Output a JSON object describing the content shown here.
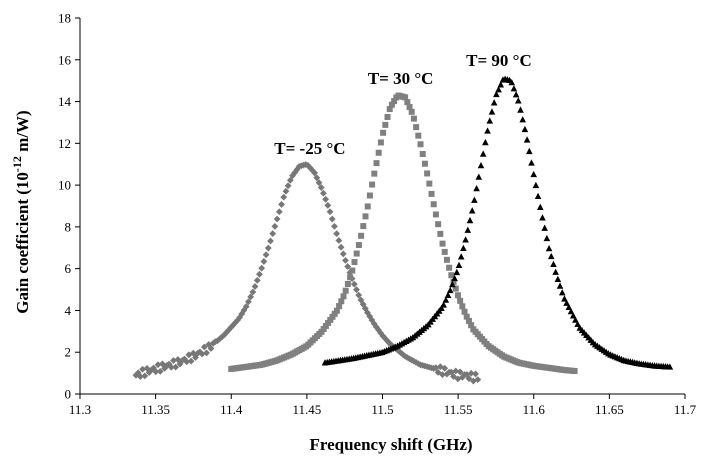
{
  "chart_data": {
    "type": "scatter",
    "title": "",
    "xlabel": "Frequency shift (GHz)",
    "ylabel": "Gain coefficient (10",
    "ylabel_sup": "-12",
    "ylabel_tail": "  m/W)",
    "xlim": [
      11.3,
      11.7
    ],
    "ylim": [
      0,
      18
    ],
    "x_ticks": [
      11.3,
      11.35,
      11.4,
      11.45,
      11.5,
      11.55,
      11.6,
      11.65,
      11.7
    ],
    "x_tick_labels": [
      "11.3",
      "11.35",
      "11.4",
      "11.45",
      "11.5",
      "11.55",
      "11.6",
      "11.65",
      "11.7"
    ],
    "y_ticks": [
      0,
      2,
      4,
      6,
      8,
      10,
      12,
      14,
      16,
      18
    ],
    "y_tick_labels": [
      "0",
      "2",
      "4",
      "6",
      "8",
      "10",
      "12",
      "14",
      "16",
      "18"
    ],
    "grid": false,
    "series": [
      {
        "marker": "diamond",
        "color": "#777777",
        "x": [
          11.337,
          11.345,
          11.355,
          11.365,
          11.375,
          11.385,
          11.395,
          11.405,
          11.41,
          11.415,
          11.42,
          11.425,
          11.43,
          11.435,
          11.44,
          11.445,
          11.45,
          11.455,
          11.46,
          11.465,
          11.47,
          11.475,
          11.48,
          11.485,
          11.49,
          11.495,
          11.5,
          11.505,
          11.51,
          11.515,
          11.52,
          11.525,
          11.53,
          11.535,
          11.54,
          11.545,
          11.55,
          11.555,
          11.56,
          11.563
        ],
        "y": [
          0.9,
          1.1,
          1.3,
          1.5,
          1.8,
          2.2,
          2.8,
          3.6,
          4.2,
          5.0,
          6.0,
          7.1,
          8.3,
          9.5,
          10.4,
          10.9,
          11.0,
          10.6,
          9.8,
          8.8,
          7.6,
          6.5,
          5.5,
          4.6,
          3.9,
          3.3,
          2.8,
          2.4,
          2.1,
          1.8,
          1.6,
          1.4,
          1.3,
          1.2,
          1.1,
          1.0,
          0.9,
          0.9,
          0.8,
          0.8
        ]
      },
      {
        "marker": "square",
        "color": "#808080",
        "x": [
          11.4,
          11.41,
          11.42,
          11.43,
          11.44,
          11.45,
          11.46,
          11.47,
          11.475,
          11.48,
          11.485,
          11.49,
          11.495,
          11.5,
          11.505,
          11.51,
          11.515,
          11.52,
          11.525,
          11.53,
          11.535,
          11.54,
          11.545,
          11.55,
          11.555,
          11.56,
          11.57,
          11.58,
          11.59,
          11.6,
          11.61,
          11.62,
          11.627
        ],
        "y": [
          1.2,
          1.3,
          1.4,
          1.6,
          1.9,
          2.3,
          3.0,
          4.0,
          4.8,
          5.9,
          7.3,
          8.9,
          10.7,
          12.4,
          13.7,
          14.3,
          14.2,
          13.4,
          12.0,
          10.4,
          8.7,
          7.1,
          5.8,
          4.7,
          3.8,
          3.1,
          2.3,
          1.8,
          1.5,
          1.35,
          1.25,
          1.15,
          1.1
        ]
      },
      {
        "marker": "triangle",
        "color": "#000000",
        "x": [
          11.462,
          11.48,
          11.5,
          11.51,
          11.52,
          11.53,
          11.54,
          11.545,
          11.55,
          11.555,
          11.56,
          11.565,
          11.57,
          11.575,
          11.58,
          11.585,
          11.59,
          11.595,
          11.6,
          11.605,
          11.61,
          11.615,
          11.62,
          11.63,
          11.64,
          11.65,
          11.66,
          11.67,
          11.68,
          11.69
        ],
        "y": [
          1.5,
          1.7,
          2.0,
          2.3,
          2.7,
          3.3,
          4.2,
          5.0,
          6.0,
          7.4,
          9.0,
          10.9,
          12.8,
          14.3,
          15.1,
          15.0,
          14.0,
          12.4,
          10.5,
          8.7,
          7.0,
          5.7,
          4.6,
          3.2,
          2.4,
          1.9,
          1.6,
          1.45,
          1.35,
          1.3
        ]
      }
    ],
    "annotations": [
      {
        "text": "T= -25 °C",
        "x": 11.452,
        "y": 11.5
      },
      {
        "text": "T= 30 °C",
        "x": 11.512,
        "y": 14.85
      },
      {
        "text": "T= 90 °C",
        "x": 11.577,
        "y": 15.7
      }
    ]
  }
}
